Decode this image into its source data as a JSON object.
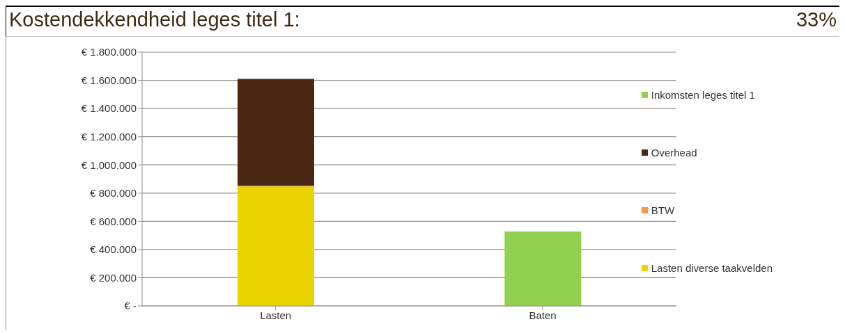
{
  "chart_data": {
    "type": "bar",
    "title": "Kostendekkendheid leges titel 1:",
    "annotations": [
      "33%"
    ],
    "stacked": true,
    "categories": [
      "Lasten",
      "Baten"
    ],
    "series": [
      {
        "name": "Lasten diverse taakvelden",
        "color": "#ebd300",
        "values": [
          847000,
          null
        ]
      },
      {
        "name": "BTW",
        "color": "#f79646",
        "values": [
          5000,
          null
        ]
      },
      {
        "name": "Overhead",
        "color": "#4b2814",
        "values": [
          758000,
          null
        ]
      },
      {
        "name": "Inkomsten leges titel 1",
        "color": "#92d050",
        "values": [
          null,
          528000
        ]
      }
    ],
    "ylim": [
      0,
      1800000
    ],
    "yticks": [
      {
        "value": 0,
        "label": "€ -"
      },
      {
        "value": 200000,
        "label": "€ 200.000"
      },
      {
        "value": 400000,
        "label": "€ 400.000"
      },
      {
        "value": 600000,
        "label": "€ 600.000"
      },
      {
        "value": 800000,
        "label": "€ 800.000"
      },
      {
        "value": 1000000,
        "label": "€ 1.000.000"
      },
      {
        "value": 1200000,
        "label": "€ 1.200.000"
      },
      {
        "value": 1400000,
        "label": "€ 1.400.000"
      },
      {
        "value": 1600000,
        "label": "€ 1.600.000"
      },
      {
        "value": 1800000,
        "label": "€ 1.800.000"
      }
    ],
    "grid": "y",
    "legend": "right"
  }
}
